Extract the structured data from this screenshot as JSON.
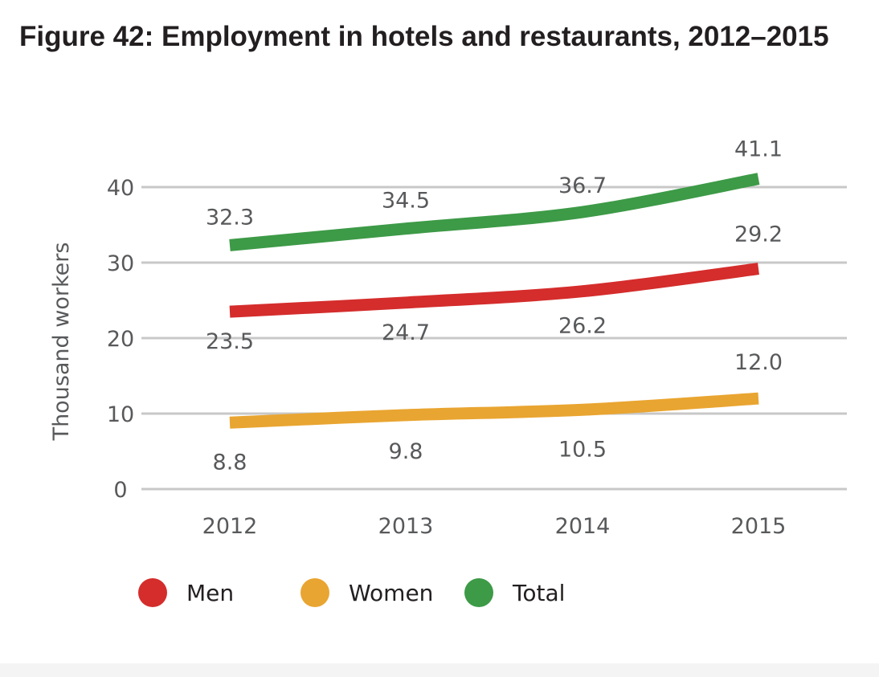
{
  "title": "Figure 42: Employment in hotels and restaurants, 2012–2015",
  "chart_data": {
    "type": "line",
    "title": "Figure 42: Employment in hotels and restaurants, 2012–2015",
    "xlabel": "",
    "ylabel": "Thousand workers",
    "categories": [
      "2012",
      "2013",
      "2014",
      "2015"
    ],
    "ylim": [
      0,
      40
    ],
    "yticks": [
      "0",
      "10",
      "20",
      "30",
      "40"
    ],
    "grid": true,
    "legend_position": "bottom-left",
    "series": [
      {
        "name": "Men",
        "color": "#d42d2c",
        "values": [
          23.5,
          24.7,
          26.2,
          29.2
        ],
        "labels": [
          "23.5",
          "24.7",
          "26.2",
          "29.2"
        ]
      },
      {
        "name": "Women",
        "color": "#e9a531",
        "values": [
          8.8,
          9.8,
          10.5,
          12.0
        ],
        "labels": [
          "8.8",
          "9.8",
          "10.5",
          "12.0"
        ]
      },
      {
        "name": "Total",
        "color": "#3d9a47",
        "values": [
          32.3,
          34.5,
          36.7,
          41.1
        ],
        "labels": [
          "32.3",
          "34.5",
          "36.7",
          "41.1"
        ]
      }
    ]
  }
}
